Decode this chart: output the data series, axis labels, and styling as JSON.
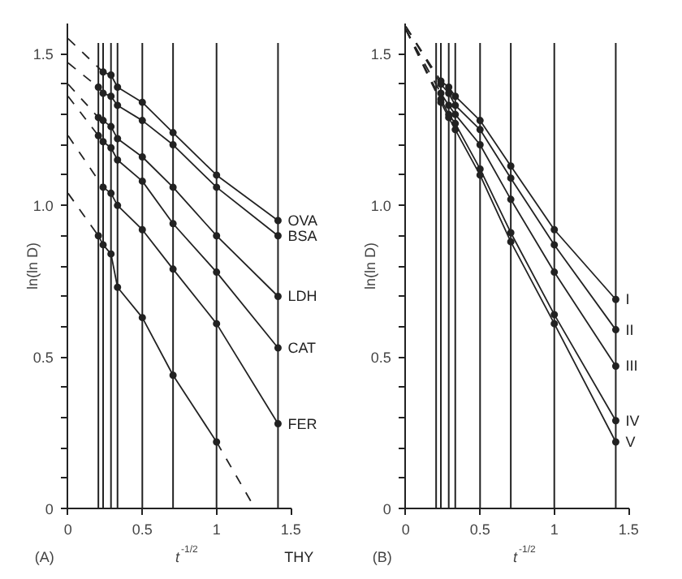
{
  "chart_data": [
    {
      "type": "line",
      "xlabel": "t$^{-1/2}$",
      "ylabel": "ln(ln D)",
      "annotations": [
        "(A)"
      ],
      "x": [
        0.204,
        0.236,
        0.289,
        0.333,
        0.5,
        0.707,
        1,
        1.414
      ],
      "xlim": [
        0,
        1.5
      ],
      "ylim": [
        0,
        1.6
      ],
      "xticks": [
        0,
        0.5,
        1,
        1.5
      ],
      "yticks": [
        0,
        {
          "value": 0.1,
          "label": null
        },
        {
          "value": 0.2,
          "label": null
        },
        {
          "value": 0.3,
          "label": null
        },
        {
          "value": 0.4,
          "label": null
        },
        0.5,
        {
          "value": 0.6,
          "label": null
        },
        {
          "value": 0.7,
          "label": null
        },
        {
          "value": 0.8,
          "label": null
        },
        {
          "value": 0.9,
          "label": null
        },
        {
          "value": 1,
          "label": "1.0"
        },
        {
          "value": 1.1,
          "label": null
        },
        {
          "value": 1.2,
          "label": null
        },
        {
          "value": 1.3,
          "label": null
        },
        {
          "value": 1.4,
          "label": null
        },
        1.5
      ],
      "marker": "circle",
      "line_style": "solid",
      "grid": false,
      "ref_lines": [
        {
          "axis": "x",
          "value": 0.204
        },
        {
          "axis": "x",
          "value": 0.236
        },
        {
          "axis": "x",
          "value": 0.289
        },
        {
          "axis": "x",
          "value": 0.333
        },
        {
          "axis": "x",
          "value": 0.5
        },
        {
          "axis": "x",
          "value": 0.707
        },
        {
          "axis": "x",
          "value": 1
        },
        {
          "axis": "x",
          "value": 1.414
        }
      ],
      "series": [
        {
          "name": "OVA",
          "color": "#222222",
          "values": [
            null,
            1.44,
            1.43,
            1.39,
            1.34,
            1.24,
            1.1,
            0.95
          ]
        },
        {
          "name": "BSA",
          "color": "#222222",
          "values": [
            1.39,
            1.37,
            1.36,
            1.33,
            1.28,
            1.2,
            1.06,
            0.9
          ]
        },
        {
          "name": "LDH",
          "color": "#222222",
          "values": [
            1.29,
            1.28,
            1.26,
            1.22,
            1.16,
            1.06,
            0.9,
            0.7
          ]
        },
        {
          "name": "CAT",
          "color": "#222222",
          "values": [
            1.23,
            1.21,
            1.19,
            1.15,
            1.08,
            0.94,
            0.78,
            0.53
          ]
        },
        {
          "name": "FER",
          "color": "#222222",
          "values": [
            null,
            1.06,
            1.04,
            1.0,
            0.92,
            0.79,
            0.61,
            0.28
          ]
        },
        {
          "name": "THY",
          "color": "#222222",
          "values": [
            0.9,
            0.87,
            0.84,
            0.73,
            0.63,
            0.44,
            0.22,
            null
          ]
        },
        {
          "type": "line",
          "color": "#222222",
          "line_style": "dashed",
          "marker": "none",
          "x": [
            0,
            0.236
          ],
          "values": [
            1.55,
            1.44
          ]
        },
        {
          "type": "line",
          "color": "#222222",
          "line_style": "dashed",
          "marker": "none",
          "x": [
            0,
            0.204
          ],
          "values": [
            1.47,
            1.39
          ]
        },
        {
          "type": "line",
          "color": "#222222",
          "line_style": "dashed",
          "marker": "none",
          "x": [
            0,
            0.204
          ],
          "values": [
            1.4,
            1.29
          ]
        },
        {
          "type": "line",
          "color": "#222222",
          "line_style": "dashed",
          "marker": "none",
          "x": [
            0,
            0.204
          ],
          "values": [
            1.36,
            1.23
          ]
        },
        {
          "type": "line",
          "color": "#222222",
          "line_style": "dashed",
          "marker": "none",
          "x": [
            0,
            0.236
          ],
          "values": [
            1.23,
            1.06
          ]
        },
        {
          "type": "line",
          "color": "#222222",
          "line_style": "dashed",
          "marker": "none",
          "x": [
            0,
            0.204
          ],
          "values": [
            1.04,
            0.9
          ]
        },
        {
          "type": "line",
          "color": "#222222",
          "line_style": "dashed",
          "marker": "none",
          "x": [
            1,
            1.26
          ],
          "values": [
            0.22,
            0
          ]
        }
      ]
    },
    {
      "type": "line",
      "xlabel": "t$^{-1/2}$",
      "ylabel": "ln(ln D)",
      "annotations": [
        "(B)"
      ],
      "x": [
        0.236,
        0.289,
        0.333,
        0.5,
        0.707,
        1,
        1.414
      ],
      "xlim": [
        0,
        1.5
      ],
      "ylim": [
        0,
        1.6
      ],
      "xticks": [
        0,
        0.5,
        1,
        1.5
      ],
      "yticks": [
        0,
        {
          "value": 0.1,
          "label": null
        },
        {
          "value": 0.2,
          "label": null
        },
        {
          "value": 0.3,
          "label": null
        },
        {
          "value": 0.4,
          "label": null
        },
        0.5,
        {
          "value": 0.6,
          "label": null
        },
        {
          "value": 0.7,
          "label": null
        },
        {
          "value": 0.8,
          "label": null
        },
        {
          "value": 0.9,
          "label": null
        },
        {
          "value": 1,
          "label": "1.0"
        },
        {
          "value": 1.1,
          "label": null
        },
        {
          "value": 1.2,
          "label": null
        },
        {
          "value": 1.3,
          "label": null
        },
        {
          "value": 1.4,
          "label": null
        },
        1.5
      ],
      "marker": "circle",
      "line_style": "solid",
      "grid": false,
      "ref_lines": [
        {
          "axis": "x",
          "value": 0.204
        },
        {
          "axis": "x",
          "value": 0.236
        },
        {
          "axis": "x",
          "value": 0.289
        },
        {
          "axis": "x",
          "value": 0.333
        },
        {
          "axis": "x",
          "value": 0.5
        },
        {
          "axis": "x",
          "value": 0.707
        },
        {
          "axis": "x",
          "value": 1
        },
        {
          "axis": "x",
          "value": 1.414
        }
      ],
      "series": [
        {
          "name": "I",
          "color": "#222222",
          "values": [
            1.41,
            1.39,
            1.36,
            1.28,
            1.13,
            0.92,
            0.69
          ]
        },
        {
          "name": "II",
          "color": "#222222",
          "values": [
            1.4,
            1.37,
            1.33,
            1.25,
            1.09,
            0.87,
            0.59
          ]
        },
        {
          "name": "III",
          "color": "#222222",
          "values": [
            1.37,
            1.33,
            1.3,
            1.2,
            1.02,
            0.78,
            0.47
          ]
        },
        {
          "name": "IV",
          "color": "#222222",
          "values": [
            1.35,
            1.3,
            1.27,
            1.12,
            0.91,
            0.64,
            0.29
          ]
        },
        {
          "name": "V",
          "color": "#222222",
          "values": [
            1.34,
            1.29,
            1.25,
            1.1,
            0.88,
            0.61,
            0.22
          ]
        },
        {
          "type": "line",
          "color": "#222222",
          "line_style": "dashed",
          "marker": "none",
          "x": [
            0,
            0.236
          ],
          "values": [
            1.59,
            1.41
          ]
        },
        {
          "type": "line",
          "color": "#222222",
          "line_style": "dashed",
          "marker": "none",
          "x": [
            0,
            0.236
          ],
          "values": [
            1.59,
            1.4
          ]
        },
        {
          "type": "line",
          "color": "#222222",
          "line_style": "dashed",
          "marker": "none",
          "x": [
            0,
            0.236
          ],
          "values": [
            1.58,
            1.37
          ]
        },
        {
          "type": "line",
          "color": "#222222",
          "line_style": "dashed",
          "marker": "none",
          "x": [
            0,
            0.236
          ],
          "values": [
            1.58,
            1.35
          ]
        },
        {
          "type": "line",
          "color": "#222222",
          "line_style": "dashed",
          "marker": "none",
          "x": [
            0,
            0.236
          ],
          "values": [
            1.58,
            1.34
          ]
        }
      ]
    }
  ]
}
